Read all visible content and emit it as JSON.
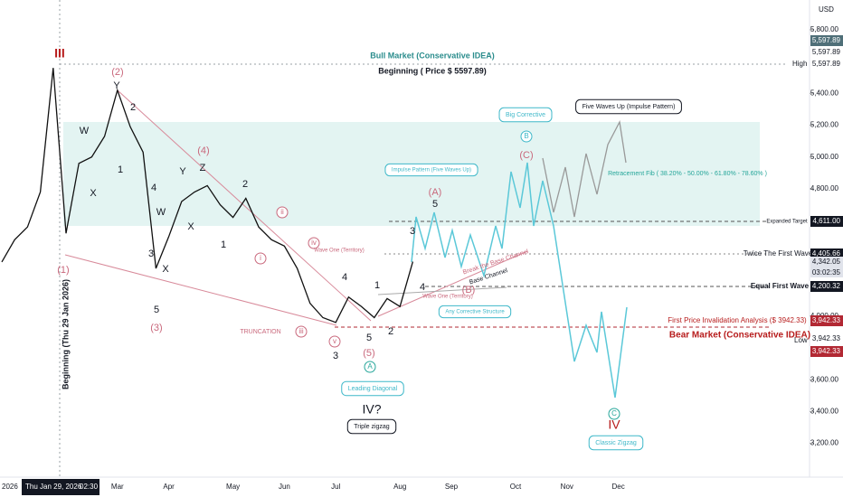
{
  "chart_data": {
    "type": "line",
    "currency": "USD",
    "color": "#111111",
    "categories": [
      "2026",
      null,
      null,
      null,
      null,
      null,
      null,
      null,
      null,
      "Mar",
      null,
      null,
      null,
      "Apr",
      null,
      null,
      null,
      null,
      "May",
      null,
      null,
      null,
      "Jun",
      null,
      null,
      null,
      "Jul",
      null,
      null,
      null,
      null,
      "Aug",
      null,
      null,
      null,
      "Sep",
      null,
      null,
      null,
      null,
      "Oct",
      null,
      null,
      null,
      "Nov",
      null,
      null,
      null,
      "Dec",
      null
    ],
    "values": [
      4340,
      4480,
      4560,
      4780,
      5560,
      4520,
      4960,
      5000,
      5130,
      5420,
      5190,
      5030,
      4300,
      4500,
      4720,
      4780,
      4820,
      4700,
      4620,
      4740,
      4560,
      4480,
      4440,
      4300,
      4080,
      3990,
      3960,
      4120,
      4060,
      3990,
      4110,
      4060,
      4342.05,
      null,
      null,
      null,
      null,
      null,
      null,
      null,
      null,
      null,
      null,
      null,
      null,
      null,
      null,
      null,
      null,
      null
    ],
    "ylim": [
      3033,
      5987
    ],
    "yticks": [
      {
        "value": 3200,
        "label": "3,200.00"
      },
      {
        "value": 3400,
        "label": "3,400.00"
      },
      {
        "value": 3600,
        "label": "3,600.00"
      },
      {
        "value": 4000,
        "label": "4,000.00"
      },
      {
        "value": 4800,
        "label": "4,800.00"
      },
      {
        "value": 5000,
        "label": "5,000.00"
      },
      {
        "value": 5200,
        "label": "5,200.00"
      },
      {
        "value": 5400,
        "label": "5,400.00"
      },
      {
        "value": 5800,
        "label": "5,800.00"
      }
    ],
    "grid": false,
    "price_labels": [
      {
        "value": 5597.89,
        "label": "5,597.89",
        "color": "#4f6f78"
      },
      {
        "value": 5597.89,
        "label": "5,597.89",
        "color": "#ffffff"
      },
      {
        "value": 5597.89,
        "label": "5,597.89",
        "color": "#ffffff"
      },
      {
        "value": 4611,
        "label": "4,611.00",
        "color": "#131722"
      },
      {
        "value": 4405.66,
        "label": "4,405.66",
        "color": "#131722"
      },
      {
        "value": 4342.05,
        "label": "4,342.05",
        "color": "#e0e3eb"
      },
      {
        "value": 4200.32,
        "label": "4,200.32",
        "color": "#131722"
      },
      {
        "value": 3942.33,
        "label": "3,942.33",
        "color": "#b22833"
      },
      {
        "value": 3942.33,
        "label": "3,942.33",
        "color": "#ffffff"
      },
      {
        "value": 3942.33,
        "label": "3,942.33",
        "color": "#b22833"
      }
    ],
    "countdown": "03:02:35",
    "high_label": "High",
    "low_label": "Low",
    "crosshair": {
      "date": "Thu Jan 29, 2026",
      "time": "02:30"
    },
    "annotations": [
      "III",
      "(2)",
      "Y",
      "2",
      "W",
      "1",
      "X",
      "4",
      "(4)",
      "Y",
      "Z",
      "W",
      "X",
      "2",
      "1",
      "3",
      "X",
      "5",
      "(3)",
      "(1)",
      "ii",
      "i",
      "iv",
      "Wave One (Territory)",
      "iii",
      "v",
      "TRUNCATION",
      "3",
      "4",
      "1",
      "5",
      "(5)",
      "A",
      "2",
      "4",
      "3",
      "5",
      "(A)",
      "(B)",
      "(C)",
      "B",
      "C",
      "IV",
      "IV?",
      "Wave One (Territory)",
      "Break the Base Channel",
      "Base Channel",
      "Bull Market (Conservative IDEA)",
      "Beginning ( Price $ 5597.89)",
      "Big Corrective",
      "Five Waves Up (Impulse Pattern)",
      "Impulse Pattern (Five Waves Up)",
      "Retracement Fib ( 38.20% - 50.00% - 61.80% - 78.60% )",
      "Expanded Target",
      "Twice The First Wave",
      "Equal First Wave",
      "Any Corrective Structure",
      "First Price Invalidation Analysis ($ 3942.33)",
      "Bear Market (Conservative IDEA)",
      "Leading Diagonal",
      "Triple zigzag",
      "Classic Zigzag",
      "Beginning (Thu 29 Jan 2026)"
    ]
  }
}
